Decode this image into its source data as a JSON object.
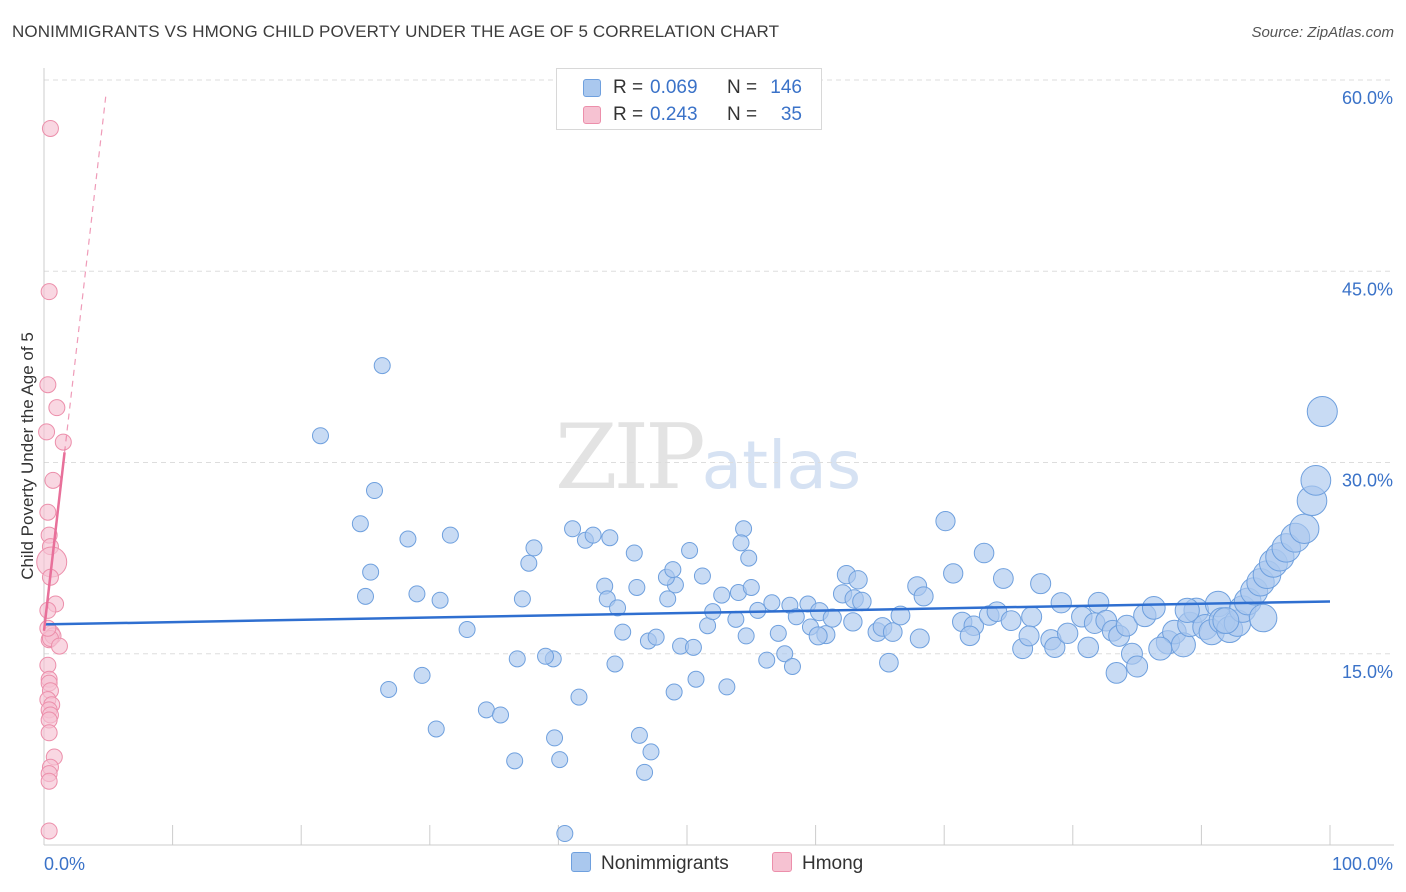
{
  "header": {
    "title": "NONIMMIGRANTS VS HMONG CHILD POVERTY UNDER THE AGE OF 5 CORRELATION CHART",
    "source": "Source: ZipAtlas.com"
  },
  "watermark": {
    "zip": "ZIP",
    "atlas": "atlas"
  },
  "legend": {
    "rows": [
      {
        "name": "Nonimmigrants",
        "r_label": "R =",
        "r_value": "0.069",
        "n_label": "N =",
        "n_value": "146"
      },
      {
        "name": "Hmong",
        "r_label": "R =",
        "r_value": "0.243",
        "n_label": "N =",
        "n_value": "35"
      }
    ]
  },
  "colors": {
    "blue_fill": "#aac8ee",
    "blue_stroke": "#6fa0de",
    "blue_line": "#2f6fd0",
    "pink_fill": "#f6c2d2",
    "pink_stroke": "#ec8fab",
    "pink_line": "#e8709a",
    "grid": "#dddddd",
    "tick_text": "#3a72c8"
  },
  "chart_data": {
    "type": "scatter",
    "title": "NONIMMIGRANTS VS HMONG CHILD POVERTY UNDER THE AGE OF 5 CORRELATION CHART",
    "xlabel": "",
    "ylabel": "Child Poverty Under the Age of 5",
    "xlim": [
      0,
      100
    ],
    "ylim": [
      0,
      60
    ],
    "x_tick_labels": [
      "0.0%",
      "100.0%"
    ],
    "y_ticks": [
      15,
      30,
      45,
      60
    ],
    "y_tick_labels": [
      "15.0%",
      "30.0%",
      "45.0%",
      "60.0%"
    ],
    "series": [
      {
        "name": "Nonimmigrants",
        "trend": {
          "x0": 0,
          "y0": 17.3,
          "x1": 100,
          "y1": 19.1
        },
        "points": [
          [
            21.5,
            32.1,
            1
          ],
          [
            26.3,
            37.6,
            1
          ],
          [
            25.7,
            27.8,
            1
          ],
          [
            24.6,
            25.2,
            1
          ],
          [
            28.3,
            24.0,
            1
          ],
          [
            31.6,
            24.3,
            1
          ],
          [
            25.4,
            21.4,
            1
          ],
          [
            25.0,
            19.5,
            1
          ],
          [
            29.0,
            19.7,
            1
          ],
          [
            30.8,
            19.2,
            1
          ],
          [
            32.9,
            16.9,
            1
          ],
          [
            26.8,
            12.2,
            1
          ],
          [
            29.4,
            13.3,
            1
          ],
          [
            30.5,
            9.1,
            1
          ],
          [
            34.4,
            10.6,
            1
          ],
          [
            35.5,
            10.2,
            1
          ],
          [
            36.8,
            14.6,
            1
          ],
          [
            37.7,
            22.1,
            1
          ],
          [
            38.1,
            23.3,
            1
          ],
          [
            39.6,
            14.6,
            1
          ],
          [
            37.2,
            19.3,
            1
          ],
          [
            39.0,
            14.8,
            1
          ],
          [
            42.1,
            23.9,
            1
          ],
          [
            39.7,
            8.4,
            1
          ],
          [
            40.1,
            6.7,
            1
          ],
          [
            41.1,
            24.8,
            1
          ],
          [
            42.7,
            24.3,
            1
          ],
          [
            43.6,
            20.3,
            1
          ],
          [
            43.8,
            19.3,
            1
          ],
          [
            44.0,
            24.1,
            1
          ],
          [
            44.4,
            14.2,
            1
          ],
          [
            46.1,
            20.2,
            1
          ],
          [
            45.9,
            22.9,
            1
          ],
          [
            44.6,
            18.6,
            1
          ],
          [
            41.6,
            11.6,
            1
          ],
          [
            46.3,
            8.6,
            1
          ],
          [
            46.7,
            5.7,
            1
          ],
          [
            47.2,
            7.3,
            1
          ],
          [
            45.0,
            16.7,
            1
          ],
          [
            47.0,
            16.0,
            1
          ],
          [
            47.6,
            16.3,
            1
          ],
          [
            49.1,
            20.4,
            1
          ],
          [
            48.5,
            19.3,
            1
          ],
          [
            48.4,
            21.0,
            1
          ],
          [
            49.0,
            12.0,
            1
          ],
          [
            49.5,
            15.6,
            1
          ],
          [
            50.5,
            15.5,
            1
          ],
          [
            50.7,
            13.0,
            1
          ],
          [
            51.2,
            21.1,
            1
          ],
          [
            51.6,
            17.2,
            1
          ],
          [
            52.0,
            18.3,
            1
          ],
          [
            54.4,
            24.8,
            1
          ],
          [
            54.2,
            23.7,
            1
          ],
          [
            54.8,
            22.5,
            1
          ],
          [
            54.0,
            19.8,
            1
          ],
          [
            55.0,
            20.2,
            1
          ],
          [
            53.8,
            17.7,
            1
          ],
          [
            55.5,
            18.4,
            1
          ],
          [
            54.6,
            16.4,
            1
          ],
          [
            56.2,
            14.5,
            1
          ],
          [
            56.6,
            19.0,
            1
          ],
          [
            58.0,
            18.8,
            1
          ],
          [
            57.6,
            15.0,
            1
          ],
          [
            58.5,
            17.9,
            1
          ],
          [
            58.2,
            14.0,
            1
          ],
          [
            59.4,
            18.9,
            1
          ],
          [
            60.3,
            18.3,
            1
          ],
          [
            59.6,
            17.1,
            1
          ],
          [
            60.8,
            16.5,
            1
          ],
          [
            62.1,
            19.7,
            1
          ],
          [
            61.3,
            17.8,
            1
          ],
          [
            62.4,
            21.2,
            1
          ],
          [
            63.3,
            20.8,
            1
          ],
          [
            63.0,
            19.3,
            1
          ],
          [
            63.6,
            19.1,
            1
          ],
          [
            64.8,
            16.7,
            1
          ],
          [
            65.2,
            17.1,
            1
          ],
          [
            66.0,
            16.7,
            1
          ],
          [
            66.6,
            18.0,
            1
          ],
          [
            67.9,
            20.3,
            1
          ],
          [
            68.4,
            19.5,
            1
          ],
          [
            70.1,
            25.4,
            1
          ],
          [
            70.7,
            21.3,
            1
          ],
          [
            71.4,
            17.5,
            1
          ],
          [
            72.3,
            17.2,
            1
          ],
          [
            73.1,
            22.9,
            1
          ],
          [
            73.5,
            18.0,
            1
          ],
          [
            74.1,
            18.3,
            1
          ],
          [
            74.6,
            20.9,
            1
          ],
          [
            75.2,
            17.6,
            1
          ],
          [
            76.1,
            15.4,
            1
          ],
          [
            76.8,
            17.9,
            1
          ],
          [
            77.5,
            20.5,
            1
          ],
          [
            78.3,
            16.1,
            1
          ],
          [
            78.6,
            15.5,
            1
          ],
          [
            79.1,
            19.0,
            1
          ],
          [
            79.6,
            16.6,
            1
          ],
          [
            80.7,
            17.9,
            1
          ],
          [
            81.2,
            15.5,
            1
          ],
          [
            81.7,
            17.4,
            1
          ],
          [
            82.0,
            19.0,
            1
          ],
          [
            82.6,
            17.6,
            1
          ],
          [
            83.1,
            16.8,
            1
          ],
          [
            83.6,
            16.4,
            1
          ],
          [
            84.2,
            17.2,
            1
          ],
          [
            84.6,
            15.0,
            1
          ],
          [
            85.0,
            14.0,
            1
          ],
          [
            85.6,
            18.0,
            1
          ],
          [
            86.3,
            18.6,
            1
          ],
          [
            87.4,
            15.9,
            1
          ],
          [
            87.9,
            16.7,
            1
          ],
          [
            88.6,
            15.7,
            1
          ],
          [
            89.1,
            17.3,
            1
          ],
          [
            89.6,
            18.4,
            1
          ],
          [
            90.3,
            17.1,
            1
          ],
          [
            90.8,
            16.7,
            1
          ],
          [
            91.3,
            18.9,
            1
          ],
          [
            91.6,
            17.6,
            1
          ],
          [
            92.2,
            16.9,
            1
          ],
          [
            92.8,
            17.4,
            1
          ],
          [
            93.2,
            18.5,
            1
          ],
          [
            93.6,
            19.1,
            1
          ],
          [
            94.1,
            19.9,
            1
          ],
          [
            94.6,
            20.6,
            1
          ],
          [
            95.1,
            21.2,
            1
          ],
          [
            95.6,
            22.1,
            1
          ],
          [
            96.1,
            22.6,
            1
          ],
          [
            96.6,
            23.3,
            1
          ],
          [
            97.3,
            24.1,
            1
          ],
          [
            98.0,
            24.8,
            1
          ],
          [
            98.6,
            27.0,
            1
          ],
          [
            98.9,
            28.6,
            1
          ],
          [
            99.4,
            34.0,
            1
          ],
          [
            91.9,
            17.6,
            1
          ],
          [
            94.8,
            17.8,
            1
          ],
          [
            88.9,
            18.4,
            1
          ],
          [
            86.8,
            15.4,
            1
          ],
          [
            83.4,
            13.5,
            1
          ],
          [
            76.6,
            16.4,
            1
          ],
          [
            72.0,
            16.4,
            1
          ],
          [
            68.1,
            16.2,
            1
          ],
          [
            65.7,
            14.3,
            1
          ],
          [
            62.9,
            17.5,
            1
          ],
          [
            60.2,
            16.4,
            1
          ],
          [
            57.1,
            16.6,
            1
          ],
          [
            53.1,
            12.4,
            1
          ],
          [
            52.7,
            19.6,
            1
          ],
          [
            50.2,
            23.1,
            1
          ],
          [
            48.9,
            21.6,
            1
          ],
          [
            40.5,
            0.9,
            1
          ],
          [
            36.6,
            6.6,
            1
          ]
        ]
      },
      {
        "name": "Hmong",
        "trend": {
          "x0": 0,
          "y0": 16.8,
          "x1": 1.6,
          "y1": 30.8,
          "dash_to_x": 4.8,
          "dash_to_y": 58.7
        },
        "points": [
          [
            0.5,
            56.2,
            1
          ],
          [
            0.4,
            43.4,
            1
          ],
          [
            0.3,
            36.1,
            1
          ],
          [
            1.0,
            34.3,
            1
          ],
          [
            1.5,
            31.6,
            1
          ],
          [
            0.2,
            32.4,
            1
          ],
          [
            0.7,
            28.6,
            1
          ],
          [
            0.3,
            26.1,
            1
          ],
          [
            0.4,
            24.3,
            1
          ],
          [
            0.5,
            23.4,
            1
          ],
          [
            0.6,
            22.2,
            2
          ],
          [
            0.5,
            21.0,
            1
          ],
          [
            0.9,
            18.9,
            1
          ],
          [
            0.3,
            18.4,
            1
          ],
          [
            0.6,
            16.6,
            1
          ],
          [
            0.4,
            16.1,
            1
          ],
          [
            0.7,
            16.4,
            1
          ],
          [
            0.5,
            16.2,
            1
          ],
          [
            1.2,
            15.6,
            1
          ],
          [
            0.3,
            14.1,
            1
          ],
          [
            0.4,
            13.0,
            1
          ],
          [
            0.4,
            12.7,
            1
          ],
          [
            0.5,
            12.1,
            1
          ],
          [
            0.3,
            11.4,
            1
          ],
          [
            0.6,
            11.0,
            1
          ],
          [
            0.4,
            10.6,
            1
          ],
          [
            0.5,
            10.2,
            1
          ],
          [
            0.4,
            9.8,
            1
          ],
          [
            0.4,
            8.8,
            1
          ],
          [
            0.8,
            6.9,
            1
          ],
          [
            0.5,
            6.1,
            1
          ],
          [
            0.4,
            5.6,
            1
          ],
          [
            0.4,
            5.0,
            1
          ],
          [
            0.4,
            1.1,
            1
          ],
          [
            0.3,
            17.0,
            1
          ]
        ]
      }
    ]
  }
}
